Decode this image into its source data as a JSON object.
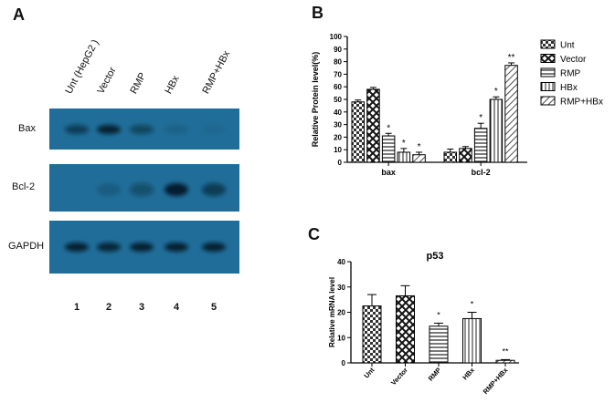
{
  "panels": {
    "a": "A",
    "b": "B",
    "c": "C"
  },
  "blot": {
    "lanes": [
      "Unt (HepG2 )",
      "Vector",
      "RMP",
      "HBx",
      "RMP+HBx"
    ],
    "rows": [
      "Bax",
      "Bcl-2",
      "GAPDH"
    ],
    "lane_numbers": [
      "1",
      "2",
      "3",
      "4",
      "5"
    ],
    "band_color": "#1f6d98",
    "band_intensity": {
      "Bax": [
        0.55,
        0.8,
        0.45,
        0.1,
        0.05
      ],
      "Bcl-2": [
        0.0,
        0.15,
        0.35,
        0.85,
        0.55
      ],
      "GAPDH": [
        0.8,
        0.75,
        0.8,
        0.8,
        0.8
      ]
    }
  },
  "chart_data": [
    {
      "type": "bar",
      "ylabel": "Relative Protein level(%)",
      "ylim": [
        0,
        100
      ],
      "yticks": [
        0,
        10,
        20,
        30,
        40,
        50,
        60,
        70,
        80,
        90,
        100
      ],
      "categories": [
        "bax",
        "bcl-2"
      ],
      "legend_position": "right",
      "series": [
        {
          "name": "Unt",
          "values": [
            48,
            8
          ],
          "errors": [
            1.5,
            2.5
          ],
          "sig": [
            "",
            ""
          ]
        },
        {
          "name": "Vector",
          "values": [
            58,
            11
          ],
          "errors": [
            1.5,
            1.5
          ],
          "sig": [
            "",
            ""
          ]
        },
        {
          "name": "RMP",
          "values": [
            21,
            27
          ],
          "errors": [
            2,
            4
          ],
          "sig": [
            "*",
            "*"
          ]
        },
        {
          "name": "HBx",
          "values": [
            8,
            50
          ],
          "errors": [
            3,
            2
          ],
          "sig": [
            "*",
            "*"
          ]
        },
        {
          "name": "RMP+HBx",
          "values": [
            6,
            77
          ],
          "errors": [
            2,
            2
          ],
          "sig": [
            "*",
            "**"
          ]
        }
      ]
    },
    {
      "type": "bar",
      "title": "p53",
      "ylabel": "Relative mRNA  level",
      "ylim": [
        0,
        40
      ],
      "yticks": [
        0,
        10,
        20,
        30,
        40
      ],
      "categories": [
        "Unt",
        "Vector",
        "RMP",
        "HBx",
        "RMP+HBx"
      ],
      "values": [
        22.5,
        26.5,
        14.5,
        17.5,
        1
      ],
      "errors": [
        4.5,
        4,
        1.2,
        2.5,
        0.3
      ],
      "sig": [
        "",
        "",
        "*",
        "*",
        "**"
      ]
    }
  ]
}
